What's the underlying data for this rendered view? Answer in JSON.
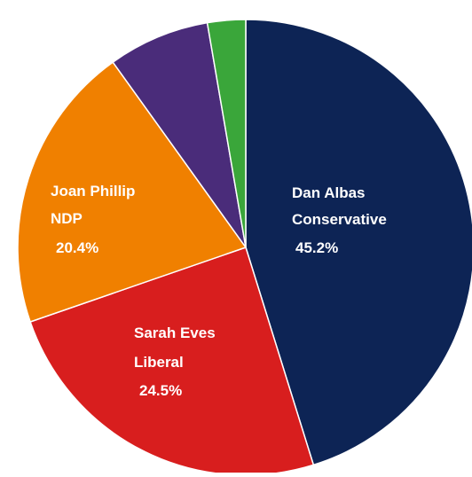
{
  "chart_data": {
    "type": "pie",
    "start_angle_deg": 0,
    "direction": "clockwise",
    "slices": [
      {
        "label_lines": [
          "Dan Albas",
          "Conservative"
        ],
        "percent_label": "45.2%",
        "value": 45.2,
        "color": "#0d2455"
      },
      {
        "label_lines": [
          "Sarah Eves",
          "Liberal"
        ],
        "percent_label": "24.5%",
        "value": 24.5,
        "color": "#d81e1e"
      },
      {
        "label_lines": [
          "Joan Phillip",
          "NDP"
        ],
        "percent_label": "20.4%",
        "value": 20.4,
        "color": "#f08000"
      },
      {
        "label_lines": [],
        "percent_label": "",
        "value": 7.2,
        "color": "#4a2c7a"
      },
      {
        "label_lines": [],
        "percent_label": "",
        "value": 2.7,
        "color": "#3aa63a"
      }
    ]
  }
}
